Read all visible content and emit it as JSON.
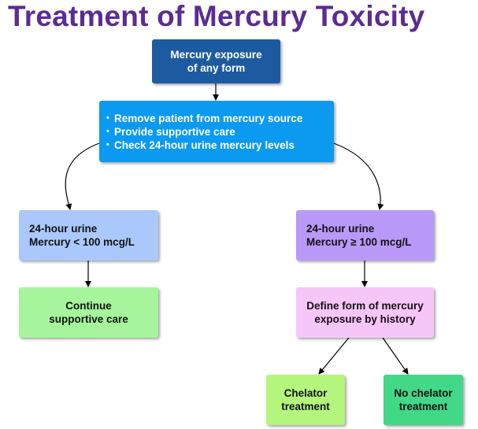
{
  "title": "Treatment of Mercury Toxicity",
  "nodes": {
    "exposure": {
      "lines": [
        "Mercury exposure",
        "of any form"
      ],
      "color": "#1e5aa0"
    },
    "actions": {
      "items": [
        "Remove patient from mercury source",
        "Provide supportive care",
        "Check 24-hour urine mercury levels"
      ],
      "color": "#0b9af0"
    },
    "low_level": {
      "lines": [
        "24-hour urine",
        "Mercury < 100 mcg/L"
      ],
      "color": "#aac8fb"
    },
    "high_level": {
      "lines": [
        "24-hour urine",
        "Mercury ≥ 100 mcg/L"
      ],
      "color": "#b999f8"
    },
    "continue_care": {
      "lines": [
        "Continue",
        "supportive care"
      ],
      "color": "#a6f59c"
    },
    "define_form": {
      "lines": [
        "Define form of mercury",
        "exposure by history"
      ],
      "color": "#f7c6f8"
    },
    "chelator": {
      "lines": [
        "Chelator",
        "treatment"
      ],
      "color": "#b4f57c"
    },
    "no_chelator": {
      "lines": [
        "No chelator",
        "treatment"
      ],
      "color": "#41d888"
    }
  },
  "edges": [
    [
      "exposure",
      "actions"
    ],
    [
      "actions",
      "low_level"
    ],
    [
      "actions",
      "high_level"
    ],
    [
      "low_level",
      "continue_care"
    ],
    [
      "high_level",
      "define_form"
    ],
    [
      "define_form",
      "chelator"
    ],
    [
      "define_form",
      "no_chelator"
    ]
  ],
  "colors": {
    "title": "#5b2c91",
    "arrow": "#000000"
  }
}
